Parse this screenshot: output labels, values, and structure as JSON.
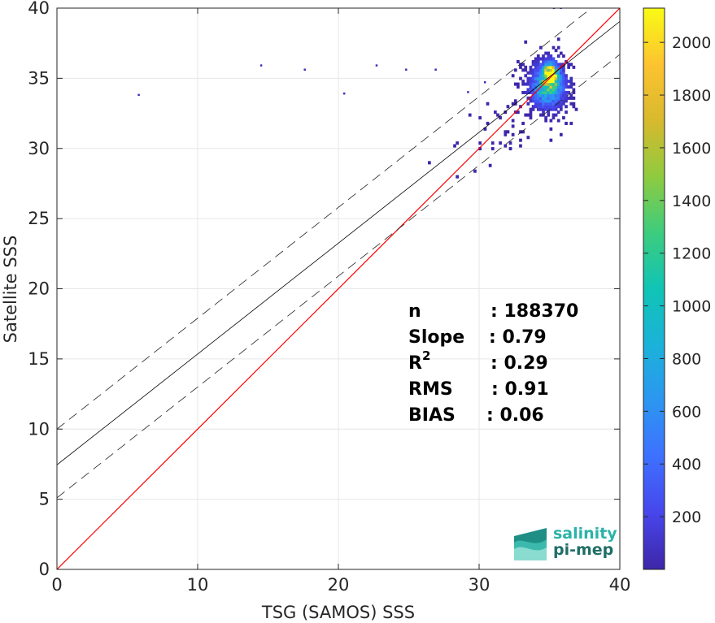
{
  "chart_data": {
    "type": "heatmap",
    "xlabel": "TSG (SAMOS) SSS",
    "ylabel": "Satellite SSS",
    "xlim": [
      0,
      40
    ],
    "ylim": [
      0,
      40
    ],
    "xticks": [
      0,
      10,
      20,
      30,
      40
    ],
    "yticks": [
      0,
      5,
      10,
      15,
      20,
      25,
      30,
      35,
      40
    ],
    "grid": true,
    "colorbar": {
      "colormap": "parula",
      "range": [
        0,
        2130
      ],
      "ticks": [
        200,
        400,
        600,
        800,
        1000,
        1200,
        1400,
        1600,
        1800,
        2000
      ]
    },
    "one_to_one_line": {
      "from": [
        0,
        0
      ],
      "to": [
        40,
        40
      ],
      "color": "#ff0000"
    },
    "regression_line": {
      "intercept": 7.45,
      "slope": 0.79,
      "color": "#000000"
    },
    "regression_bounds": [
      {
        "intercept": 10.0,
        "slope": 0.79,
        "style": "dashed"
      },
      {
        "intercept": 5.1,
        "slope": 0.79,
        "style": "dashed"
      }
    ],
    "density_clusters": [
      {
        "x": 34.8,
        "y": 34.4,
        "sx": 0.85,
        "sy": 1.1,
        "weight": 1.0
      },
      {
        "x": 35.0,
        "y": 35.3,
        "sx": 0.35,
        "sy": 0.5,
        "weight": 1.0
      },
      {
        "x": 31.8,
        "y": 31.6,
        "sx": 1.3,
        "sy": 1.3,
        "weight": 0.04
      },
      {
        "x": 28.5,
        "y": 29.0,
        "sx": 1.4,
        "sy": 0.8,
        "weight": 0.01
      }
    ],
    "outliers": [
      [
        5.8,
        33.8
      ],
      [
        14.5,
        35.9
      ],
      [
        17.6,
        35.6
      ],
      [
        20.4,
        33.9
      ],
      [
        22.7,
        35.9
      ],
      [
        24.8,
        35.6
      ],
      [
        26.9,
        35.6
      ],
      [
        29.2,
        34.0
      ],
      [
        30.4,
        34.7
      ],
      [
        35.3,
        40.0
      ],
      [
        35.8,
        40.0
      ]
    ],
    "stats": [
      {
        "label": "n",
        "sup": "",
        "value": ": 188370"
      },
      {
        "label": "Slope",
        "sup": "",
        "value": ": 0.79"
      },
      {
        "label": "R",
        "sup": "2",
        "value": ": 0.29"
      },
      {
        "label": "RMS",
        "sup": "",
        "value": ": 0.91"
      },
      {
        "label": "BIAS",
        "sup": "",
        "value": ": 0.06"
      }
    ]
  },
  "logo": {
    "line1": "salinity",
    "line2": "pi-mep",
    "color1": "#2bb3a8",
    "color2": "#1f6e66"
  }
}
